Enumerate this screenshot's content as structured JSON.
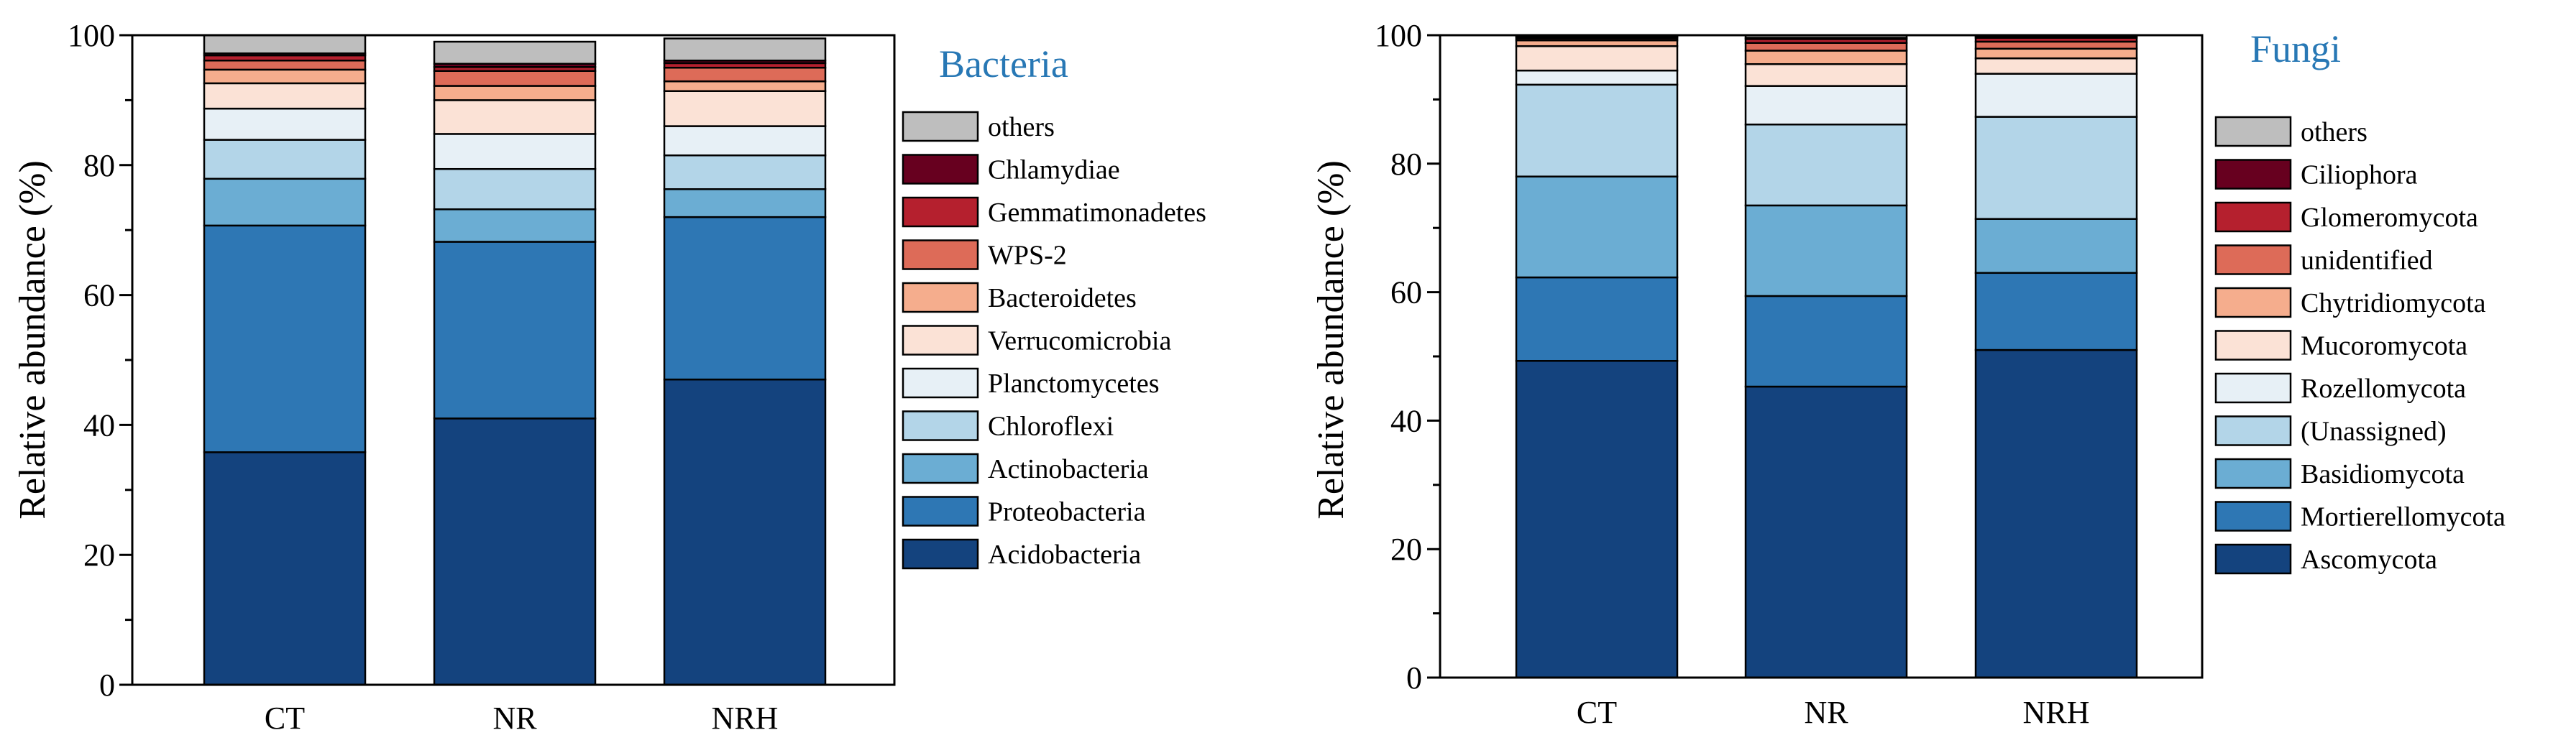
{
  "chart_data": [
    {
      "type": "bar",
      "stacked": true,
      "title": "Bacteria",
      "xlabel": "",
      "ylabel": "Relative abundance (%)",
      "ylim": [
        0,
        100
      ],
      "yticks": [
        "0",
        "20",
        "40",
        "60",
        "80",
        "100"
      ],
      "categories": [
        "CT",
        "NR",
        "NRH"
      ],
      "series": [
        {
          "name": "Acidobacteria",
          "color": "#14437e",
          "values": [
            35.8,
            41.0,
            47.0
          ]
        },
        {
          "name": "Proteobacteria",
          "color": "#2e77b4",
          "values": [
            34.9,
            27.2,
            25.0
          ]
        },
        {
          "name": "Actinobacteria",
          "color": "#6badd3",
          "values": [
            7.2,
            5.0,
            4.3
          ]
        },
        {
          "name": "Chloroflexi",
          "color": "#b3d5e8",
          "values": [
            6.0,
            6.2,
            5.2
          ]
        },
        {
          "name": "Planctomycetes",
          "color": "#e7f0f6",
          "values": [
            4.8,
            5.4,
            4.5
          ]
        },
        {
          "name": "Verrucomicrobia",
          "color": "#fbe2d6",
          "values": [
            3.9,
            5.2,
            5.4
          ]
        },
        {
          "name": "Bacteroidetes",
          "color": "#f5ad8d",
          "values": [
            2.1,
            2.2,
            1.5
          ]
        },
        {
          "name": "WPS-2",
          "color": "#dd6b58",
          "values": [
            1.4,
            2.3,
            2.1
          ]
        },
        {
          "name": "Gemmatimonadetes",
          "color": "#b5202e",
          "values": [
            0.8,
            0.6,
            0.7
          ]
        },
        {
          "name": "Chlamydiae",
          "color": "#67001f",
          "values": [
            0.3,
            0.5,
            0.4
          ]
        },
        {
          "name": "others",
          "color": "#bebebe",
          "values": [
            2.8,
            3.4,
            3.4
          ]
        }
      ]
    },
    {
      "type": "bar",
      "stacked": true,
      "title": "Fungi",
      "xlabel": "",
      "ylabel": "Relative abundance (%)",
      "ylim": [
        0,
        100
      ],
      "yticks": [
        "0",
        "20",
        "40",
        "60",
        "80",
        "100"
      ],
      "categories": [
        "CT",
        "NR",
        "NRH"
      ],
      "series": [
        {
          "name": "Ascomycota",
          "color": "#14437e",
          "values": [
            49.3,
            45.3,
            51.0
          ]
        },
        {
          "name": "Mortierellomycota",
          "color": "#2e77b4",
          "values": [
            13.0,
            14.1,
            12.0
          ]
        },
        {
          "name": "Basidiomycota",
          "color": "#6badd3",
          "values": [
            15.7,
            14.1,
            8.4
          ]
        },
        {
          "name": "(Unassigned)",
          "color": "#b3d5e8",
          "values": [
            14.3,
            12.6,
            15.9
          ]
        },
        {
          "name": "Rozellomycota",
          "color": "#e7f0f6",
          "values": [
            2.2,
            6.0,
            6.7
          ]
        },
        {
          "name": "Mucoromycota",
          "color": "#fbe2d6",
          "values": [
            3.8,
            3.4,
            2.4
          ]
        },
        {
          "name": "Chytridiomycota",
          "color": "#f5ad8d",
          "values": [
            0.9,
            2.1,
            1.5
          ]
        },
        {
          "name": "unidentified",
          "color": "#dd6b58",
          "values": [
            0.3,
            1.2,
            1.1
          ]
        },
        {
          "name": "Glomeromycota",
          "color": "#b5202e",
          "values": [
            0.2,
            0.6,
            0.6
          ]
        },
        {
          "name": "Ciliophora",
          "color": "#67001f",
          "values": [
            0.1,
            0.2,
            0.2
          ]
        },
        {
          "name": "others",
          "color": "#bebebe",
          "values": [
            0.2,
            0.4,
            0.2
          ]
        }
      ]
    }
  ]
}
